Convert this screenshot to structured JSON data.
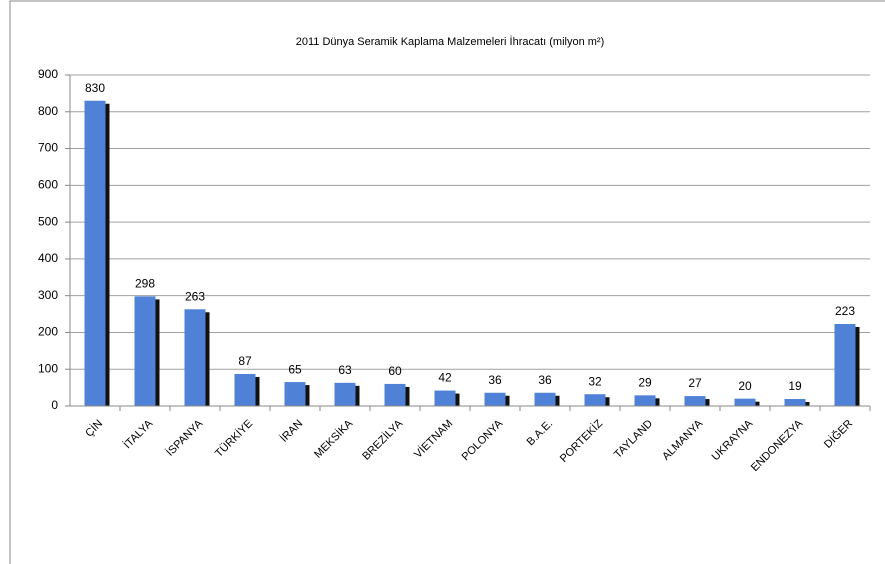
{
  "chart_data": {
    "type": "bar",
    "title": "2011 Dünya Seramik Kaplama Malzemeleri İhracatı (milyon m²)",
    "categories": [
      "ÇİN",
      "İTALYA",
      "İSPANYA",
      "TÜRKİYE",
      "İRAN",
      "MEKSİKA",
      "BREZİLYA",
      "VİETNAM",
      "POLONYA",
      "B.A.E.",
      "PORTEKİZ",
      "TAYLAND",
      "ALMANYA",
      "UKRAYNA",
      "ENDONEZYA",
      "DİĞER"
    ],
    "values": [
      830,
      298,
      263,
      87,
      65,
      63,
      60,
      42,
      36,
      36,
      32,
      29,
      27,
      20,
      19,
      223
    ],
    "color": "#4f81d6",
    "ylim": [
      0,
      900
    ],
    "yticks": [
      0,
      100,
      200,
      300,
      400,
      500,
      600,
      700,
      800,
      900
    ],
    "grid": true
  }
}
